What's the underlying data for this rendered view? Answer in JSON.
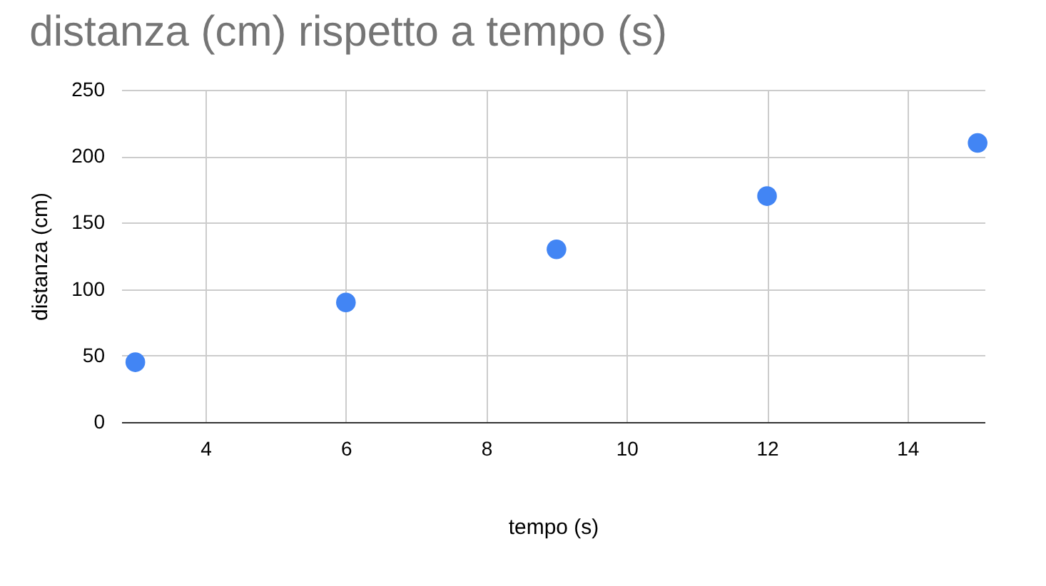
{
  "chart_data": {
    "type": "scatter",
    "title": "distanza (cm) rispetto a tempo (s)",
    "xlabel": "tempo (s)",
    "ylabel": "distanza (cm)",
    "x": [
      3,
      6,
      9,
      12,
      15
    ],
    "series": [
      {
        "color": "#4285f4",
        "values": [
          45,
          90,
          130,
          170,
          210
        ]
      }
    ],
    "xlim": [
      2.8,
      15.1
    ],
    "xticks": [
      4,
      6,
      8,
      10,
      12,
      14
    ],
    "ylim": [
      0,
      250
    ],
    "yticks": [
      0,
      50,
      100,
      150,
      200,
      250
    ],
    "grid": true,
    "marker": "circle"
  }
}
